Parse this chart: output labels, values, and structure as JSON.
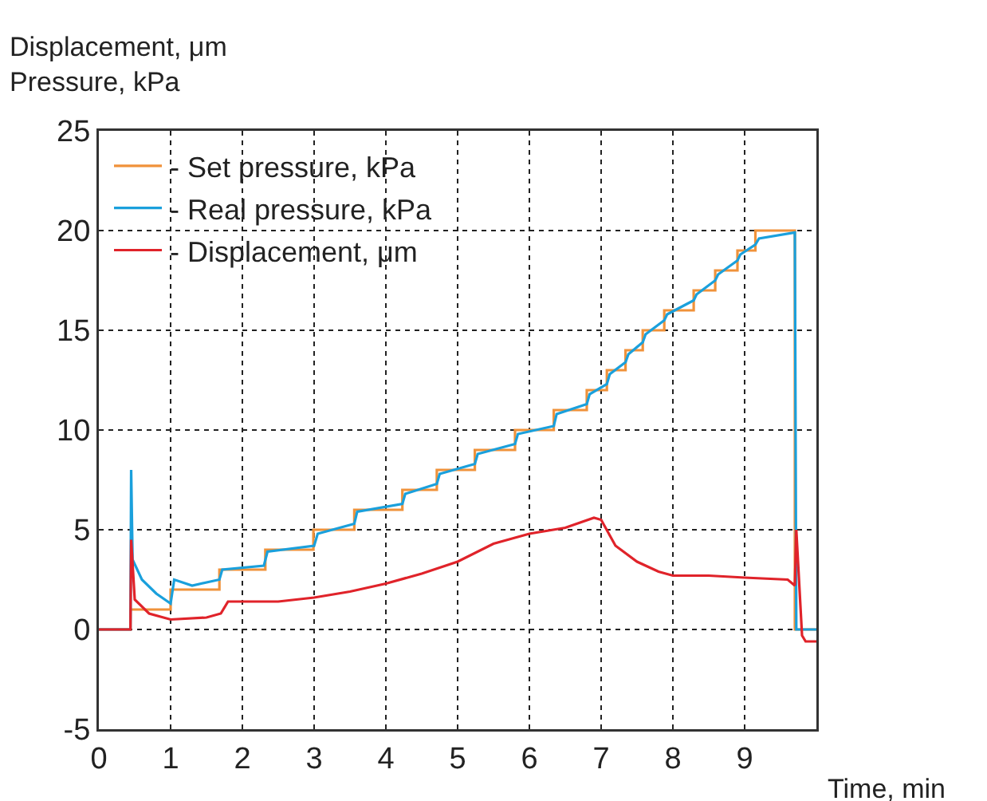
{
  "chart_data": {
    "type": "line",
    "ylabel": "Displacement, μm\nPressure, kPa",
    "xlabel": "Time, min",
    "xlim": [
      0,
      10
    ],
    "xticks": [
      0,
      1,
      2,
      3,
      4,
      5,
      6,
      7,
      8,
      9
    ],
    "ylim": [
      -5,
      25
    ],
    "yticks": [
      -5,
      0,
      5,
      10,
      15,
      20,
      25
    ],
    "grid": true,
    "legend": "top left",
    "marker": "none",
    "line_style": "solid",
    "series": [
      {
        "name": "- Set pressure, kPa",
        "type": "step",
        "color": "#f0923a",
        "x": [
          0,
          0.44,
          1.0,
          1.68,
          2.32,
          2.99,
          3.56,
          4.23,
          4.71,
          5.24,
          5.8,
          6.34,
          6.8,
          7.08,
          7.34,
          7.58,
          7.88,
          8.29,
          8.59,
          8.9,
          9.15,
          9.7,
          10
        ],
        "values": [
          0,
          1,
          2,
          3,
          4,
          5,
          6,
          7,
          8,
          9,
          10,
          11,
          12,
          13,
          14,
          15,
          16,
          17,
          18,
          19,
          20,
          0,
          0
        ]
      },
      {
        "name": "- Real pressure, kPa",
        "color": "#1aa0dc",
        "x": [
          0,
          0.44,
          0.45,
          0.47,
          0.6,
          0.8,
          1.0,
          1.05,
          1.3,
          1.68,
          1.72,
          2.3,
          2.35,
          3.0,
          3.05,
          3.56,
          3.6,
          4.23,
          4.27,
          4.71,
          4.75,
          5.24,
          5.28,
          5.8,
          5.84,
          6.34,
          6.38,
          6.8,
          6.84,
          7.08,
          7.12,
          7.34,
          7.38,
          7.58,
          7.62,
          7.88,
          7.92,
          8.29,
          8.33,
          8.59,
          8.63,
          8.9,
          8.94,
          9.15,
          9.2,
          9.7,
          9.72,
          10
        ],
        "values": [
          0,
          0,
          8,
          3.5,
          2.5,
          1.8,
          1.3,
          2.5,
          2.2,
          2.5,
          3,
          3.2,
          3.9,
          4.2,
          4.8,
          5.3,
          5.9,
          6.3,
          6.8,
          7.3,
          7.8,
          8.3,
          8.8,
          9.3,
          9.8,
          10.2,
          10.8,
          11.3,
          11.8,
          12.3,
          12.8,
          13.4,
          13.8,
          14.4,
          14.8,
          15.5,
          15.8,
          16.5,
          16.8,
          17.5,
          17.8,
          18.5,
          18.8,
          19.3,
          19.6,
          19.9,
          0,
          0
        ]
      },
      {
        "name": "- Displacement, μm",
        "color": "#e0232a",
        "x": [
          0,
          0.44,
          0.45,
          0.5,
          0.7,
          1.0,
          1.5,
          1.7,
          1.8,
          2.5,
          3.0,
          3.5,
          4.0,
          4.5,
          5.0,
          5.5,
          6.0,
          6.5,
          6.9,
          7.0,
          7.2,
          7.5,
          7.8,
          8.0,
          8.5,
          9.0,
          9.6,
          9.7,
          9.72,
          9.8,
          9.85,
          10
        ],
        "values": [
          0,
          0,
          4.5,
          1.5,
          0.8,
          0.5,
          0.6,
          0.8,
          1.4,
          1.4,
          1.6,
          1.9,
          2.3,
          2.8,
          3.4,
          4.3,
          4.8,
          5.1,
          5.6,
          5.5,
          4.2,
          3.4,
          2.9,
          2.7,
          2.7,
          2.6,
          2.5,
          2.2,
          5,
          -0.3,
          -0.6,
          -0.6
        ]
      }
    ]
  }
}
